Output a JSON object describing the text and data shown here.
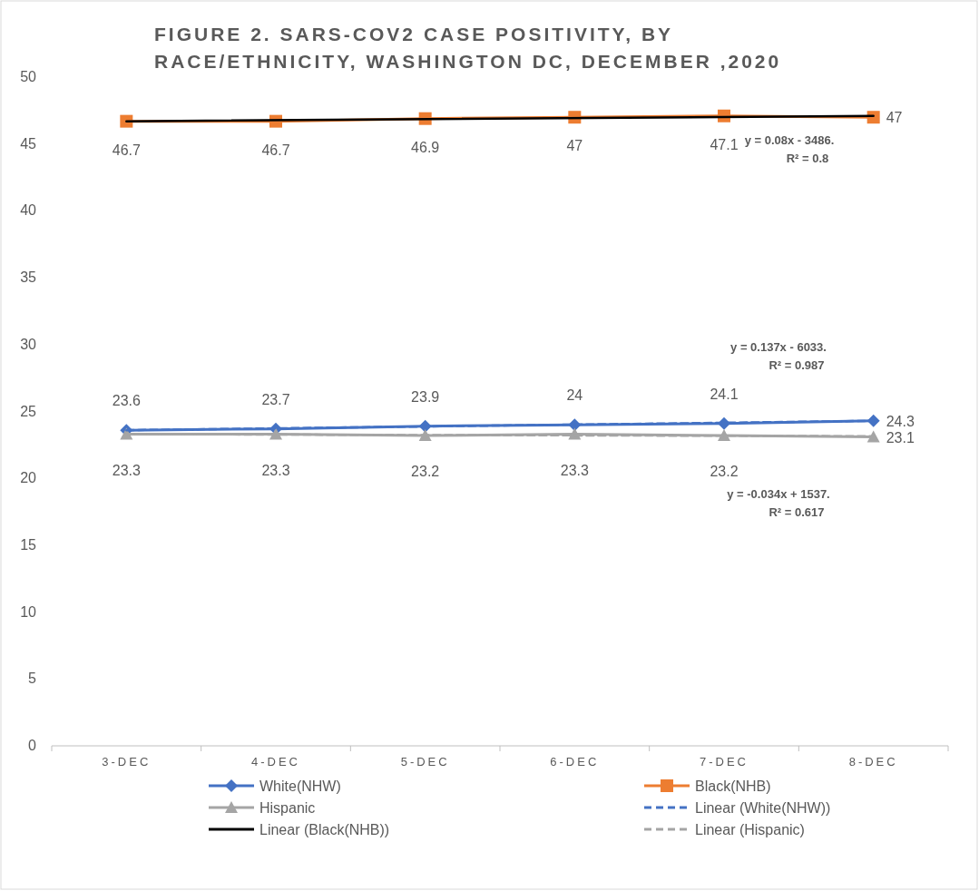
{
  "chart_data": {
    "type": "line",
    "title": "FIGURE 2. SARS-COV2 CASE POSITIVITY, BY\nRACE/ETHNICITY, WASHINGTON DC, DECEMBER ,2020",
    "categories": [
      "3-DEC",
      "4-DEC",
      "5-DEC",
      "6-DEC",
      "7-DEC",
      "8-DEC"
    ],
    "series": [
      {
        "name": "White(NHW)",
        "color": "#4472c4",
        "marker": "diamond",
        "values": [
          23.6,
          23.7,
          23.9,
          24,
          24.1,
          24.3
        ],
        "value_labels": [
          "23.6",
          "23.7",
          "23.9",
          "24",
          "24.1",
          "24.3"
        ]
      },
      {
        "name": "Black(NHB)",
        "color": "#ed7d31",
        "marker": "square",
        "values": [
          46.7,
          46.7,
          46.9,
          47,
          47.1,
          47
        ],
        "value_labels": [
          "46.7",
          "46.7",
          "46.9",
          "47",
          "47.1",
          "47"
        ]
      },
      {
        "name": "Hispanic",
        "color": "#a5a5a5",
        "marker": "triangle",
        "values": [
          23.3,
          23.3,
          23.2,
          23.3,
          23.2,
          23.1
        ],
        "value_labels": [
          "23.3",
          "23.3",
          "23.2",
          "23.3",
          "23.2",
          "23.1"
        ]
      },
      {
        "name": "Linear (White(NHW))",
        "color": "#4472c4",
        "marker": "none",
        "line_style": "dashed",
        "x": [
          "3-DEC",
          "8-DEC"
        ],
        "values": [
          23.6,
          24.3
        ]
      },
      {
        "name": "Linear (Black(NHB))",
        "color": "#000000",
        "marker": "none",
        "line_style": "solid",
        "x": [
          "3-DEC",
          "8-DEC"
        ],
        "values": [
          46.7,
          47.1
        ]
      },
      {
        "name": "Linear (Hispanic)",
        "color": "#a5a5a5",
        "marker": "none",
        "line_style": "dashed",
        "x": [
          "3-DEC",
          "8-DEC"
        ],
        "values": [
          23.3,
          23.15
        ]
      }
    ],
    "ylim": [
      0,
      50
    ],
    "yticks": [
      0,
      5,
      10,
      15,
      20,
      25,
      30,
      35,
      40,
      45,
      50
    ],
    "grid": false,
    "legend": "bottom",
    "annotations": [
      "y = 0.08x - 3486.\nR² = 0.8",
      "y = 0.137x - 6033.\nR² = 0.987",
      "y = -0.034x + 1537.\nR² = 0.617"
    ]
  }
}
